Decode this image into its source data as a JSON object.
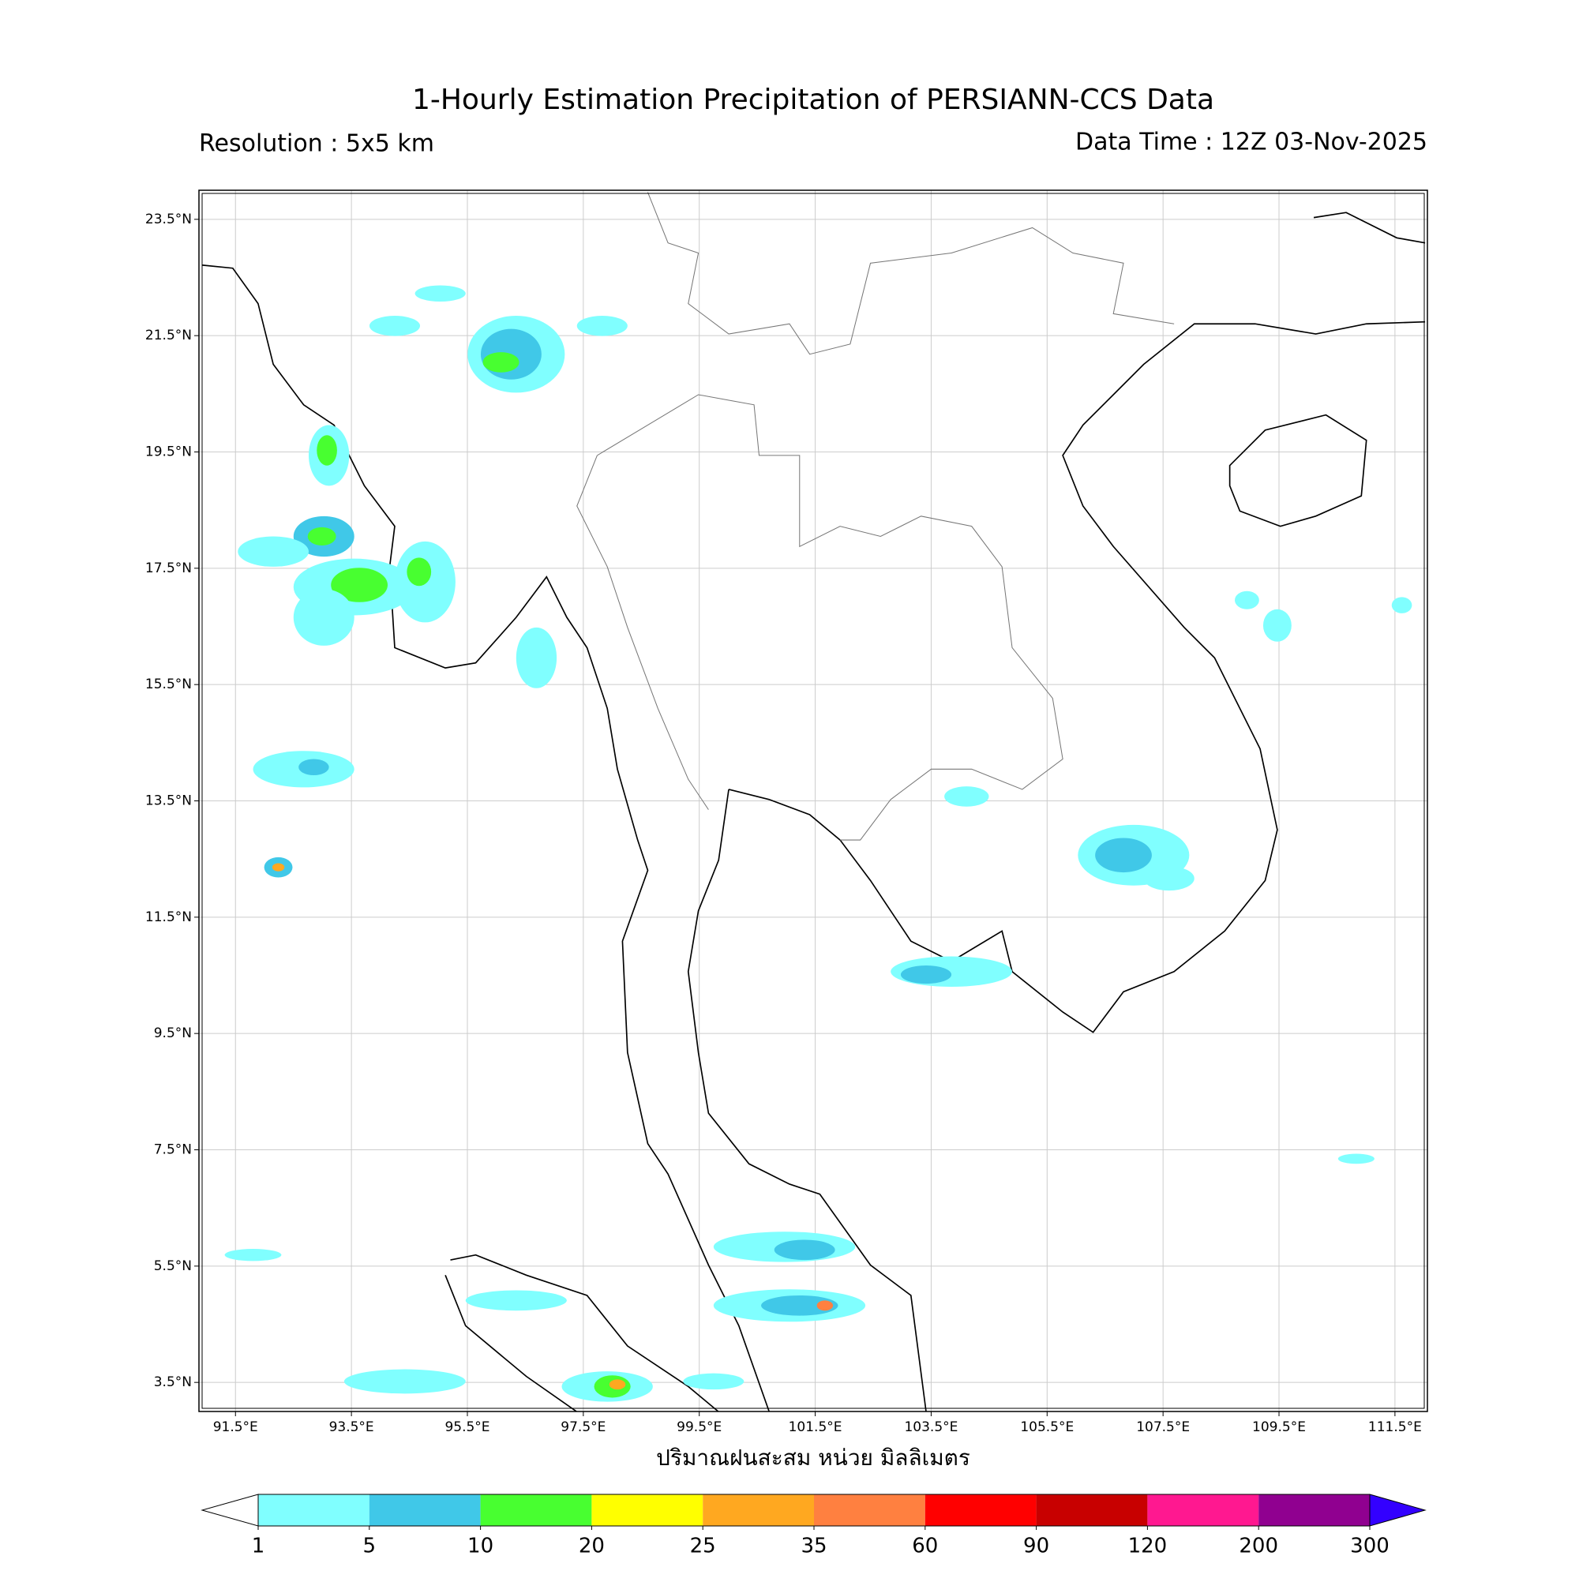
{
  "title": "1-Hourly Estimation Precipitation of PERSIANN-CCS Data",
  "subtitle_left": "Resolution : 5x5 km",
  "subtitle_right": "Data Time : 12Z 03-Nov-2025",
  "map": {
    "xlim": [
      90.87,
      112.06
    ],
    "ylim": [
      3.0,
      24.0
    ],
    "xticks": [
      {
        "value": 91.5,
        "label": "91.5°E"
      },
      {
        "value": 93.5,
        "label": "93.5°E"
      },
      {
        "value": 95.5,
        "label": "95.5°E"
      },
      {
        "value": 97.5,
        "label": "97.5°E"
      },
      {
        "value": 99.5,
        "label": "99.5°E"
      },
      {
        "value": 101.5,
        "label": "101.5°E"
      },
      {
        "value": 103.5,
        "label": "103.5°E"
      },
      {
        "value": 105.5,
        "label": "105.5°E"
      },
      {
        "value": 107.5,
        "label": "107.5°E"
      },
      {
        "value": 109.5,
        "label": "109.5°E"
      },
      {
        "value": 111.5,
        "label": "111.5°E"
      }
    ],
    "yticks": [
      {
        "value": 23.5,
        "label": "23.5°N"
      },
      {
        "value": 21.5,
        "label": "21.5°N"
      },
      {
        "value": 19.5,
        "label": "19.5°N"
      },
      {
        "value": 17.5,
        "label": "17.5°N"
      },
      {
        "value": 15.5,
        "label": "15.5°N"
      },
      {
        "value": 13.5,
        "label": "13.5°N"
      },
      {
        "value": 11.5,
        "label": "11.5°N"
      },
      {
        "value": 9.5,
        "label": "9.5°N"
      },
      {
        "value": 7.5,
        "label": "7.5°N"
      },
      {
        "value": 5.5,
        "label": "5.5°N"
      },
      {
        "value": 3.5,
        "label": "3.5°N"
      }
    ],
    "grid": true
  },
  "x_label": "ปริมาณฝนสะสม หน่วย มิลลิเมตร",
  "colorbar": {
    "bounds": [
      1,
      5,
      10,
      20,
      25,
      35,
      60,
      90,
      120,
      200,
      300
    ],
    "colors": [
      "#80ffff",
      "#40c8e8",
      "#48ff30",
      "#ffff00",
      "#ffa820",
      "#ff8040",
      "#ff0000",
      "#c80000",
      "#ff1890",
      "#900090"
    ],
    "under_color": "#ffffff",
    "over_color": "#3300ff"
  }
}
